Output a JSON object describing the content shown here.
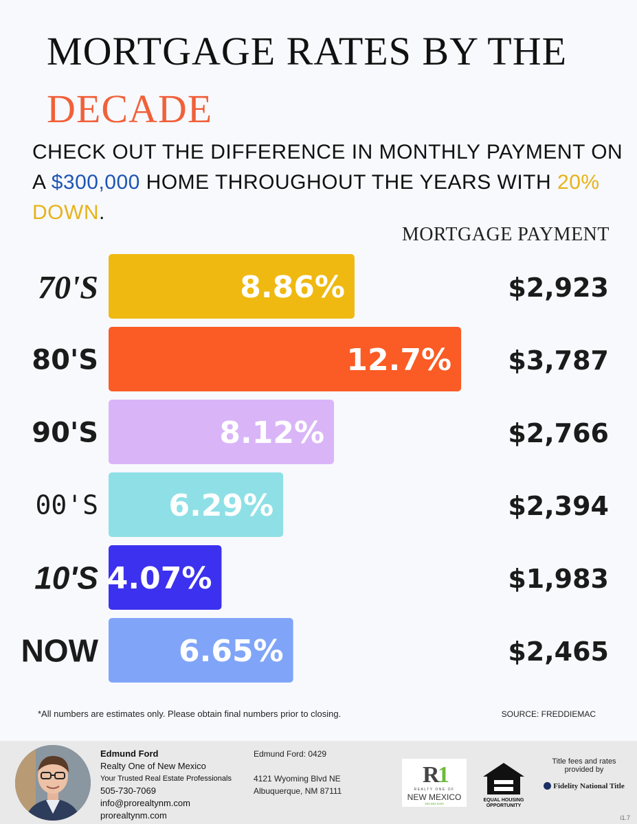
{
  "title": {
    "line1": "MORTGAGE RATES BY THE",
    "line2": "DECADE"
  },
  "subtitle": {
    "part1": "CHECK OUT THE DIFFERENCE IN MONTHLY PAYMENT ON A ",
    "price": "$300,000",
    "part2": " HOME THROUGHOUT THE YEARS WITH ",
    "down": "20% DOWN",
    "part3": "."
  },
  "payment_header": "MORTGAGE PAYMENT",
  "chart_data": {
    "type": "bar",
    "orientation": "horizontal",
    "categories": [
      "70'S",
      "80'S",
      "90'S",
      "00'S",
      "10'S",
      "NOW"
    ],
    "values": [
      8.86,
      12.7,
      8.12,
      6.29,
      4.07,
      6.65
    ],
    "value_labels": [
      "8.86%",
      "12.7%",
      "8.12%",
      "6.29%",
      "4.07%",
      "6.65%"
    ],
    "payments": [
      "$2,923",
      "$3,787",
      "$2,766",
      "$2,394",
      "$1,983",
      "$2,465"
    ],
    "colors": [
      "#efb911",
      "#fb5b24",
      "#d9b5f8",
      "#8ee0e6",
      "#3c31ee",
      "#80a5f8"
    ]
  },
  "footnote": "*All numbers are estimates only. Please obtain final numbers prior to closing.",
  "source": "SOURCE: FREDDIEMAC",
  "agent": {
    "name": "Edmund Ford",
    "company": "Realty One of New Mexico",
    "tagline": "Your Trusted Real Estate Professionals",
    "phone": "505-730-7069",
    "email": "info@prorealtynm.com",
    "website": "prorealtynm.com"
  },
  "license": "Edmund Ford: 0429",
  "address": {
    "line1": "4121 Wyoming Blvd NE",
    "line2": "Albuquerque, NM 87111"
  },
  "logos": {
    "r1_tagline": "REALTY ONE OF",
    "r1_name": "NEW MEXICO",
    "r1_phone": "505.883.9400",
    "eho_line1": "EQUAL HOUSING",
    "eho_line2": "OPPORTUNITY"
  },
  "title_fees": "Title fees and rates provided by",
  "fidelity": "Fidelity National Title",
  "version": "i1.7"
}
